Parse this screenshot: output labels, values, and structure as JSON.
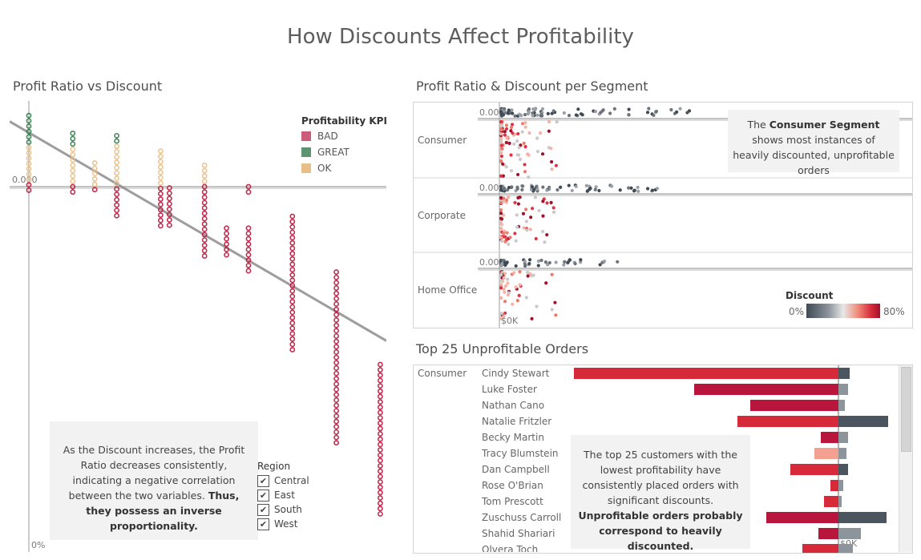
{
  "dashboard_title": "How Discounts Affect Profitability",
  "chart_data": [
    {
      "type": "scatter",
      "title": "Profit Ratio vs Discount",
      "x_axis_label": "0%",
      "y_zero_label": "0.000",
      "trend_line": true,
      "legend": {
        "title": "Profitability KPI",
        "items": [
          {
            "label": "BAD",
            "color": "#cc5a7a"
          },
          {
            "label": "GREAT",
            "color": "#5f9472"
          },
          {
            "label": "OK",
            "color": "#e8bf88"
          }
        ]
      },
      "columns": [
        {
          "discount": 0.0,
          "kpi": "mixed",
          "min": -0.05,
          "max": 0.6
        },
        {
          "discount": 0.1,
          "kpi": "mixed",
          "min": -0.06,
          "max": 0.45
        },
        {
          "discount": 0.15,
          "kpi": "mixed",
          "min": -0.06,
          "max": 0.2
        },
        {
          "discount": 0.2,
          "kpi": "mixed",
          "min": -0.25,
          "max": 0.43
        },
        {
          "discount": 0.3,
          "kpi": "mixed",
          "min": -0.35,
          "max": 0.3
        },
        {
          "discount": 0.32,
          "kpi": "BAD",
          "min": -0.35,
          "max": -0.01
        },
        {
          "discount": 0.4,
          "kpi": "mixed",
          "min": -0.6,
          "max": 0.18
        },
        {
          "discount": 0.45,
          "kpi": "BAD",
          "min": -0.58,
          "max": -0.35
        },
        {
          "discount": 0.5,
          "kpi": "BAD",
          "min": -0.75,
          "max": -0.35
        },
        {
          "discount": 0.5,
          "kpi": "BAD",
          "min": -0.05,
          "max": 0.0
        },
        {
          "discount": 0.6,
          "kpi": "BAD",
          "min": -1.4,
          "max": -0.25
        },
        {
          "discount": 0.7,
          "kpi": "BAD",
          "min": -2.2,
          "max": -0.72
        },
        {
          "discount": 0.8,
          "kpi": "BAD",
          "min": -2.8,
          "max": -1.5
        }
      ]
    },
    {
      "type": "scatter",
      "title": "Profit Ratio & Discount per Segment",
      "x_label": "$0K",
      "y_zero_label": "0.00",
      "segments": [
        "Consumer",
        "Corporate",
        "Home Office"
      ],
      "color_legend": {
        "title": "Discount",
        "min_label": "0%",
        "max_label": "80%"
      }
    },
    {
      "type": "bar",
      "title": "Top 25 Unprofitable Orders",
      "segment": "Consumer",
      "x_label": "$0K",
      "customers": [
        "Cindy Stewart",
        "Luke Foster",
        "Nathan Cano",
        "Natalie Fritzler",
        "Becky Martin",
        "Tracy Blumstein",
        "Dan Campbell",
        "Rose O'Brian",
        "Tom Prescott",
        "Zuschuss Carroll",
        "Shahid Shariari",
        "Olvera Toch"
      ]
    }
  ],
  "left_annotation": {
    "text": "As the Discount increases, the Profit Ratio decreases consistently, indicating a negative correlation between the two variables.",
    "bold": "Thus, they possess an inverse proportionality."
  },
  "region_filter": {
    "title": "Region",
    "items": [
      {
        "label": "Central",
        "checked": true
      },
      {
        "label": "East",
        "checked": true
      },
      {
        "label": "South",
        "checked": true
      },
      {
        "label": "West",
        "checked": true
      }
    ]
  },
  "segment_annotation": {
    "pre": "The",
    "bold": "Consumer Segment",
    "post": "shows most instances of heavily discounted, unprofitable orders"
  },
  "bar_annotation": {
    "text": "The top 25 customers with the lowest profitability have consistently placed orders with significant discounts.",
    "bold": "Unprofitable orders probably correspond to heavily discounted."
  }
}
